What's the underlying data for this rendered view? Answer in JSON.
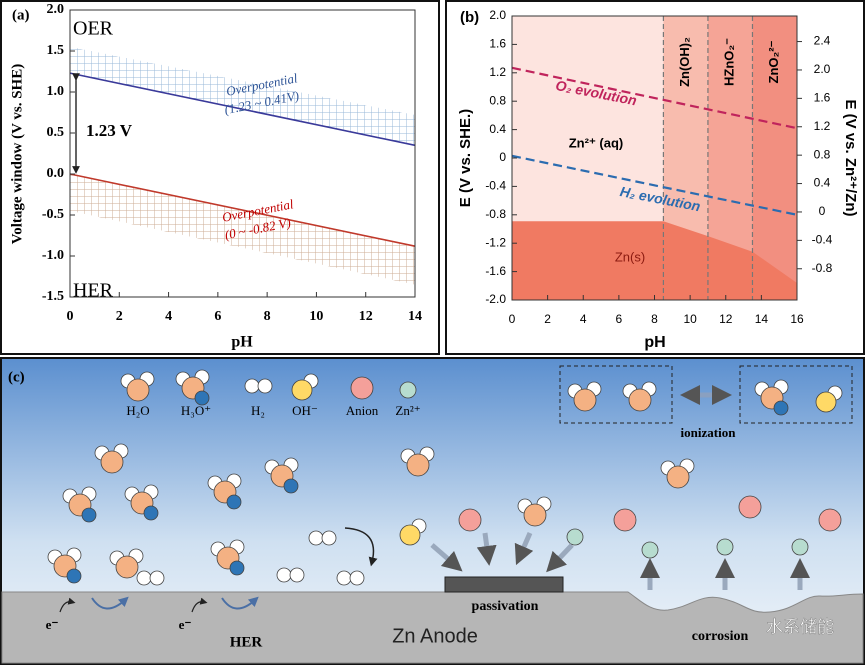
{
  "chart_data": [
    {
      "type": "line",
      "title": "(a)",
      "xlabel": "pH",
      "ylabel": "Voltage window (V vs. SHE)",
      "xlim": [
        0,
        14
      ],
      "xticks": [
        0,
        2,
        4,
        6,
        8,
        10,
        12,
        14
      ],
      "ylim": [
        -1.5,
        2.0
      ],
      "yticks": [
        -1.5,
        {
          "value": -1,
          "label": "-1.0"
        },
        -0.5,
        {
          "value": 0,
          "label": "0.0"
        },
        0.5,
        {
          "value": 1,
          "label": "1.0"
        },
        1.5,
        {
          "value": 2,
          "label": "2.0"
        }
      ],
      "x": [
        0,
        14
      ],
      "series": [
        {
          "color": "#3a3a9a",
          "values": [
            1.23,
            0.35
          ]
        },
        {
          "color": "#c0392b",
          "values": [
            0,
            -0.88
          ]
        }
      ],
      "bands": [
        {
          "color": "#8fb0d4",
          "values": [
            1.55,
            0.72
          ]
        },
        {
          "color": "#c9a58a",
          "values": [
            -0.45,
            -1.35
          ]
        }
      ],
      "labels": {
        "top": "OER",
        "bottom": "HER",
        "window": "1.23 V"
      },
      "annotations": [
        "Overpotential",
        "(1.23 ~ 0.41V)",
        "Overpotential",
        "(0 ~ -0.82 V)"
      ]
    },
    {
      "type": "pourbaix",
      "title": "(b)",
      "xlabel": "pH",
      "ylabel": "E (V vs. SHE.)",
      "y2label": "E (V vs. Zn²⁺/Zn)",
      "xlim": [
        0,
        16
      ],
      "xticks": [
        0,
        2,
        4,
        6,
        8,
        10,
        12,
        14,
        16
      ],
      "ylim": [
        -2.0,
        2.0
      ],
      "yticks": [
        {
          "value": -2,
          "label": "-2.0"
        },
        -1.6,
        -1.2,
        -0.8,
        -0.4,
        0,
        0.4,
        0.8,
        1.2,
        1.6,
        {
          "value": 2,
          "label": "2.0"
        }
      ],
      "y2lim": [
        -1.24,
        2.76
      ],
      "y2ticks": [
        -0.8,
        -0.4,
        0,
        0.4,
        0.8,
        1.2,
        1.6,
        {
          "value": 2,
          "label": "2.0"
        },
        2.4
      ],
      "regions": [
        {
          "label": "Zn²⁺ (aq)",
          "to": 8.5,
          "color": "#fde4df"
        },
        {
          "label": "Zn(OH)₂",
          "to": 11,
          "color": "#f8bcae"
        },
        {
          "label": "HZnO₂⁻",
          "to": 13.5,
          "color": "#f5a496"
        },
        {
          "label": "ZnO₂²⁻",
          "to": 16,
          "color": "#f28f80"
        }
      ],
      "solid": {
        "label": "Zn(s)",
        "color": "#f07a62",
        "x": [
          0,
          8.5,
          11,
          13.5,
          16
        ],
        "values": [
          -0.89,
          -0.89,
          -1.1,
          -1.32,
          -1.76
        ]
      },
      "x": [
        0,
        16
      ],
      "series": [
        {
          "label": "O₂ evolution",
          "color": "#c0245c",
          "values": [
            1.27,
            0.42
          ]
        },
        {
          "label": "H₂ evolution",
          "color": "#2b6cb0",
          "values": [
            0.03,
            -0.8
          ]
        }
      ]
    }
  ],
  "diagram": {
    "label": "(c)",
    "legend": [
      "H₂O",
      "H₃O⁺",
      "H₂",
      "OH⁻",
      "Anion",
      "Zn²⁺"
    ],
    "ionization": "ionization",
    "electrons": [
      "e⁻",
      "e⁻"
    ],
    "her": "HER",
    "passivation": "passivation",
    "anode": "Zn Anode",
    "corrosion": "corrosion",
    "watermark": "水系储能"
  }
}
